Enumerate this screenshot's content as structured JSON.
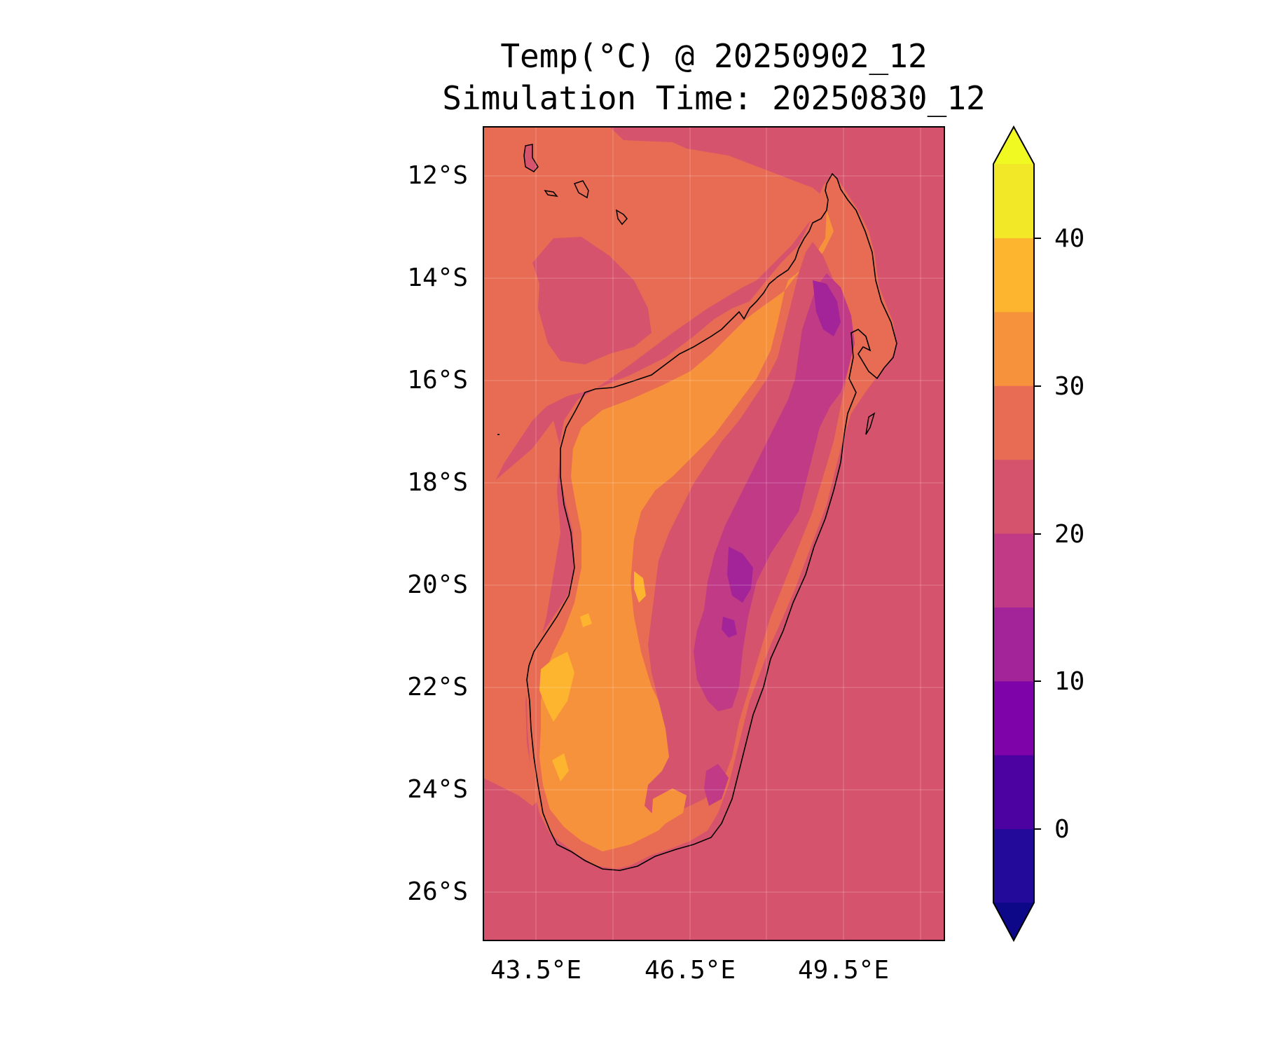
{
  "title": {
    "line1": "Temp(°C) @ 20250902_12",
    "line2": "Simulation Time: 20250830_12"
  },
  "map": {
    "lat_range": [
      -27,
      -11.1
    ],
    "lon_range": [
      41.5,
      50.5
    ],
    "lat_ticks": [
      "12°S",
      "14°S",
      "16°S",
      "18°S",
      "20°S",
      "22°S",
      "24°S",
      "26°S"
    ],
    "lon_ticks": [
      "43.5°E",
      "46.5°E",
      "49.5°E"
    ],
    "grid": true
  },
  "colorbar": {
    "unit": "°C",
    "tick_labels": [
      "40",
      "30",
      "20",
      "10",
      "0"
    ],
    "levels": [
      -5,
      0,
      5,
      10,
      15,
      20,
      25,
      30,
      35,
      40,
      45
    ],
    "colors": [
      "#240a9a",
      "#4c02a1",
      "#7e03a8",
      "#a32499",
      "#c13a86",
      "#d6536d",
      "#e86c53",
      "#f6923c",
      "#fdb42f",
      "#f2e827"
    ],
    "under_color": "#0d0887",
    "over_color": "#f0f921",
    "extend": "both"
  },
  "fields": {
    "ocean_south": "#d6536d",
    "ocean_north": "#e86c53",
    "coast_band": "#e86c53",
    "lowland": "#f6923c",
    "hot_pockets": "#fdb42f",
    "highland": "#d6536d",
    "high_plateau": "#c13a86",
    "peaks": "#a32499",
    "coastline": "#000000"
  }
}
